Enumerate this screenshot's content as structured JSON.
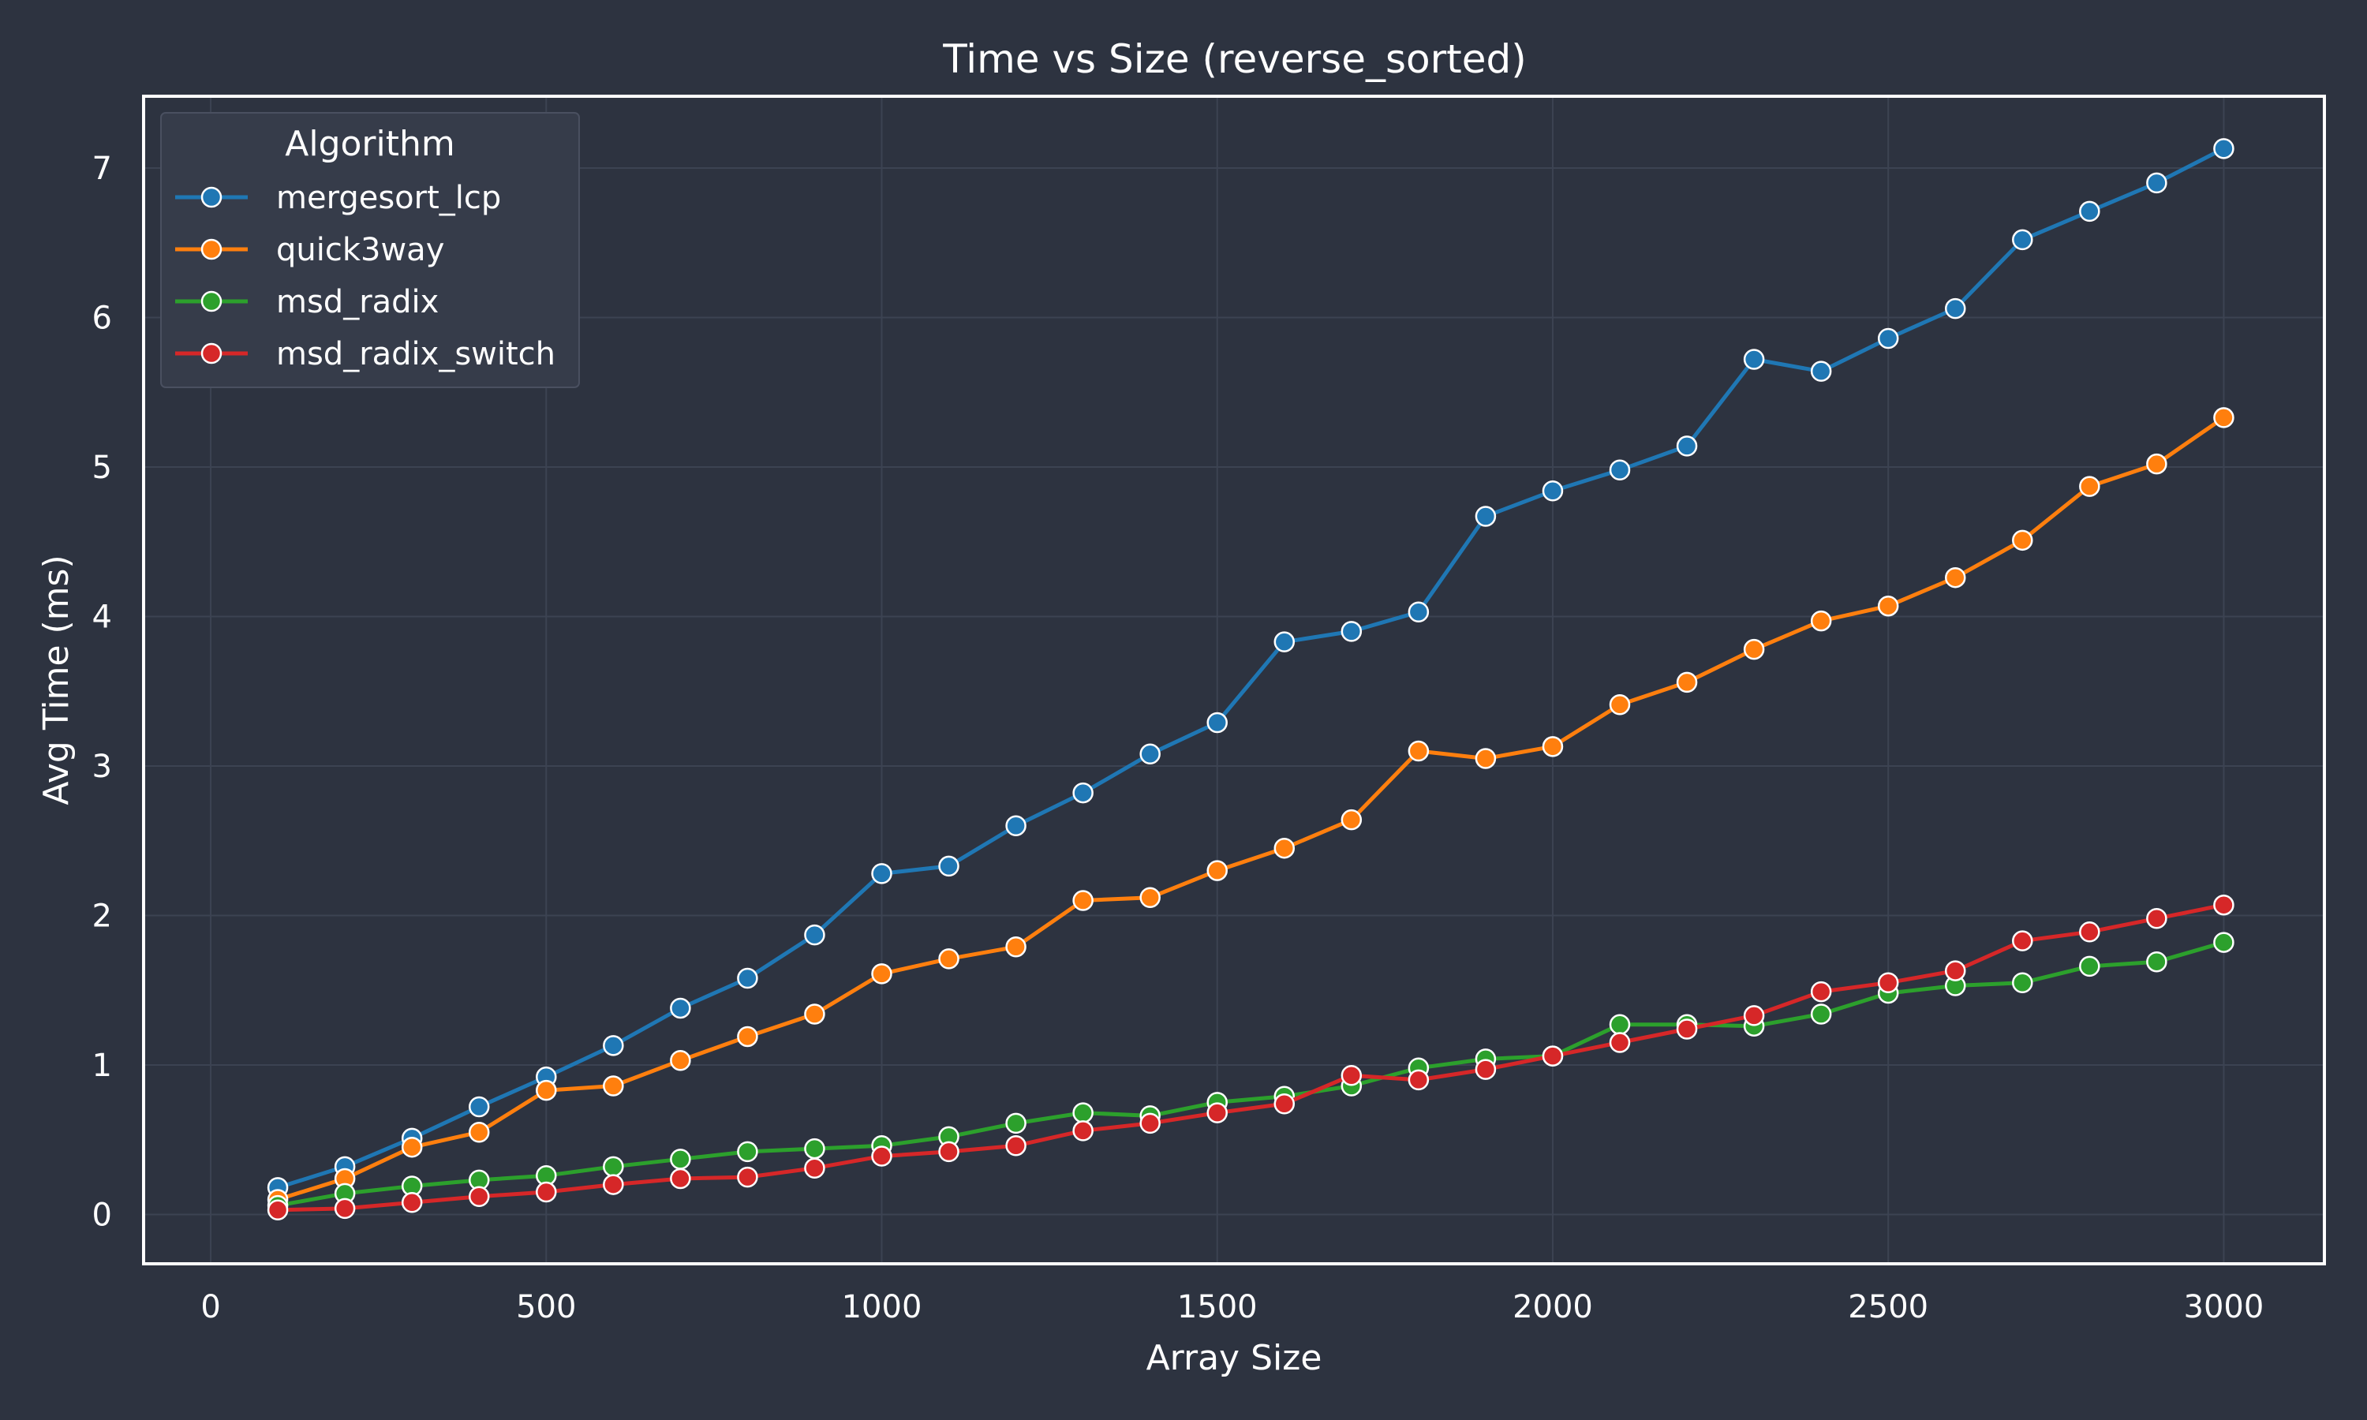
{
  "chart_data": {
    "type": "line",
    "title": "Time vs Size (reverse_sorted)",
    "xlabel": "Array Size",
    "ylabel": "Avg Time (ms)",
    "xlim": [
      -100,
      3150
    ],
    "ylim": [
      -0.33,
      7.48
    ],
    "x_ticks": [
      0,
      500,
      1000,
      1500,
      2000,
      2500,
      3000
    ],
    "y_ticks": [
      0,
      1,
      2,
      3,
      4,
      5,
      6,
      7
    ],
    "grid": true,
    "legend": {
      "title": "Algorithm",
      "position": "top-left"
    },
    "x": [
      100,
      200,
      300,
      400,
      500,
      600,
      700,
      800,
      900,
      1000,
      1100,
      1200,
      1300,
      1400,
      1500,
      1600,
      1700,
      1800,
      1900,
      2000,
      2100,
      2200,
      2300,
      2400,
      2500,
      2600,
      2700,
      2800,
      2900,
      3000
    ],
    "series": [
      {
        "name": "mergesort_lcp",
        "color": "#1f77b4",
        "values": [
          0.18,
          0.32,
          0.51,
          0.72,
          0.92,
          1.13,
          1.38,
          1.58,
          1.87,
          2.28,
          2.33,
          2.6,
          2.82,
          3.08,
          3.29,
          3.83,
          3.9,
          4.03,
          4.67,
          4.84,
          4.98,
          5.14,
          5.72,
          5.64,
          5.86,
          6.06,
          6.52,
          6.71,
          6.9,
          7.13
        ]
      },
      {
        "name": "quick3way",
        "color": "#ff7f0e",
        "values": [
          0.1,
          0.24,
          0.45,
          0.55,
          0.83,
          0.86,
          1.03,
          1.19,
          1.34,
          1.61,
          1.71,
          1.79,
          2.1,
          2.12,
          2.3,
          2.45,
          2.64,
          3.1,
          3.05,
          3.13,
          3.41,
          3.56,
          3.78,
          3.97,
          4.07,
          4.26,
          4.51,
          4.87,
          5.02,
          5.33
        ]
      },
      {
        "name": "msd_radix",
        "color": "#2ca02c",
        "values": [
          0.06,
          0.14,
          0.19,
          0.23,
          0.26,
          0.32,
          0.37,
          0.42,
          0.44,
          0.46,
          0.52,
          0.61,
          0.68,
          0.66,
          0.75,
          0.79,
          0.86,
          0.98,
          1.04,
          1.06,
          1.27,
          1.27,
          1.26,
          1.34,
          1.48,
          1.53,
          1.55,
          1.66,
          1.69,
          1.82
        ]
      },
      {
        "name": "msd_radix_switch",
        "color": "#d62728",
        "values": [
          0.03,
          0.04,
          0.08,
          0.12,
          0.15,
          0.2,
          0.24,
          0.25,
          0.31,
          0.39,
          0.42,
          0.46,
          0.56,
          0.61,
          0.68,
          0.74,
          0.93,
          0.9,
          0.97,
          1.06,
          1.15,
          1.24,
          1.33,
          1.49,
          1.55,
          1.63,
          1.83,
          1.89,
          1.98,
          2.07
        ]
      }
    ]
  }
}
